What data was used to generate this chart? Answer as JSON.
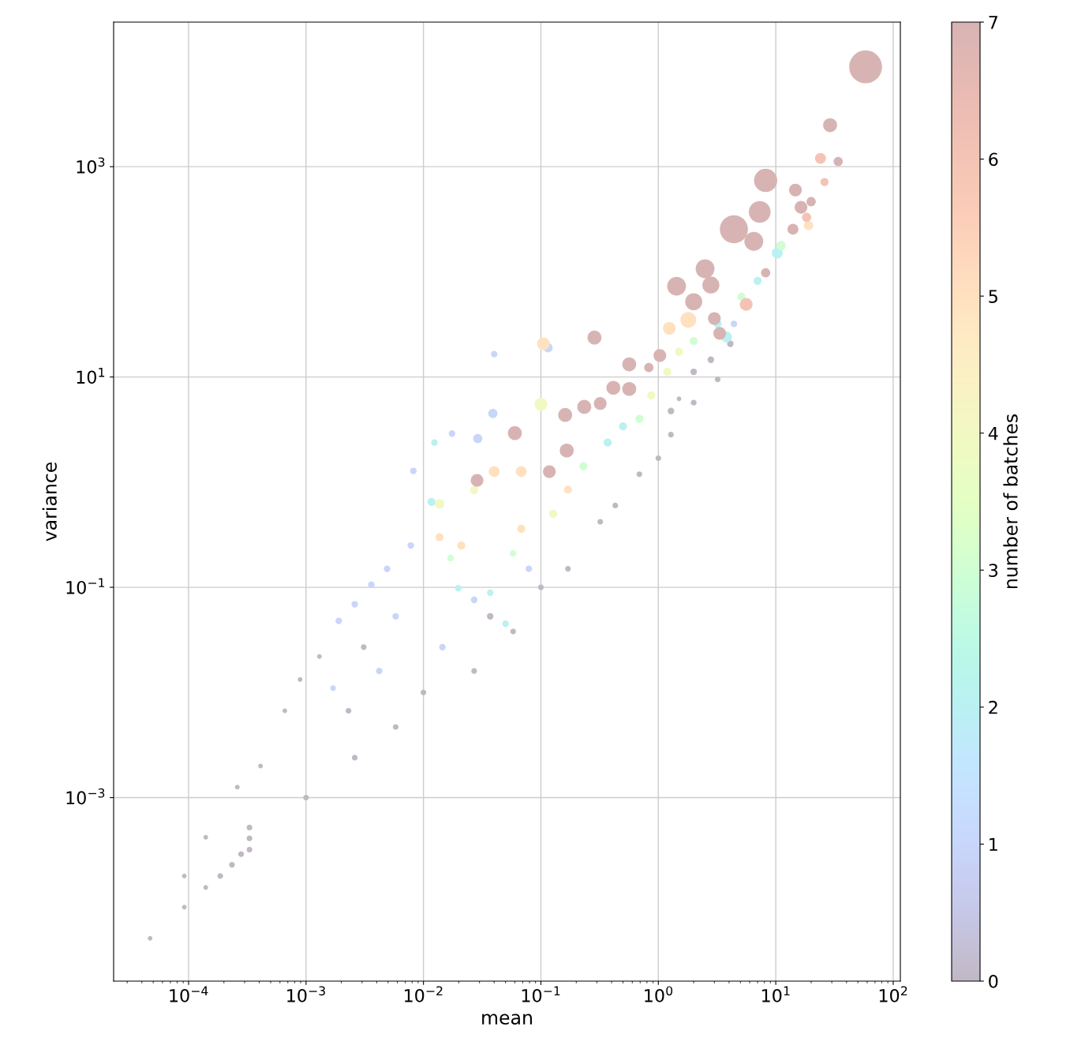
{
  "chart_data": {
    "type": "bubble",
    "xlabel": "mean",
    "ylabel": "variance",
    "clabel": "number of batches",
    "log": "xy",
    "grid": true,
    "xlim": [
      2.3e-05,
      115
    ],
    "ylim": [
      1.8e-05,
      23700
    ],
    "xticks": [
      {
        "value": 0.0001,
        "label": "10$^{−4}$"
      },
      {
        "value": 0.001,
        "label": "10$^{−3}$"
      },
      {
        "value": 0.01,
        "label": "10$^{−2}$"
      },
      {
        "value": 0.1,
        "label": "10$^{−1}$"
      },
      {
        "value": 1,
        "label": "10$^{0}$"
      },
      {
        "value": 10,
        "label": "10$^{1}$"
      },
      {
        "value": 100,
        "label": "10$^{2}$"
      }
    ],
    "yticks": [
      {
        "value": 0.001,
        "label": "10$^{−3}$"
      },
      {
        "value": 0.1,
        "label": "10$^{−1}$"
      },
      {
        "value": 10,
        "label": "10$^{1}$"
      },
      {
        "value": 1000,
        "label": "10$^{3}$"
      }
    ],
    "clim": [
      0,
      7
    ],
    "cticks": [
      0,
      1,
      2,
      3,
      4,
      5,
      6,
      7
    ],
    "x": [
      4.7e-05,
      9.2e-05,
      9.2e-05,
      0.00014,
      0.00014,
      0.000186,
      0.000234,
      0.00028,
      0.00033,
      0.00033,
      0.00033,
      0.001,
      0.01,
      0.1,
      0.32,
      1,
      0.00026,
      0.00041,
      0.00066,
      0.00089,
      0.0013,
      0.0026,
      0.0058,
      0.027,
      0.058,
      0.17,
      0.43,
      0.69,
      1.28,
      2.0,
      3.2,
      0.0031,
      0.0023,
      0.037,
      0.0017,
      0.0019,
      0.0026,
      0.0036,
      0.0049,
      0.0078,
      0.0082,
      0.0117,
      0.0137,
      0.027,
      0.021,
      0.0137,
      0.037,
      0.017,
      0.058,
      0.068,
      0.127,
      0.17,
      0.23,
      0.37,
      0.5,
      0.69,
      0.87,
      1.19,
      1.5,
      2.0,
      3.2,
      5.1,
      0.027,
      0.0058,
      0.0042,
      0.0145,
      0.05,
      0.0198,
      0.079,
      4.1,
      2.8,
      2.0,
      1.5,
      1.28,
      4.4,
      7.0,
      10.3,
      19,
      26,
      16.4,
      20,
      18.3,
      14,
      11.1,
      8.2,
      5.6,
      3.8,
      3.33,
      3.0,
      1.8,
      1.24,
      1.03,
      0.83,
      0.32,
      0.414,
      0.565,
      0.166,
      0.118,
      0.068,
      0.04,
      0.0286,
      0.0124,
      0.0175,
      0.029,
      0.039,
      0.1,
      0.06,
      0.234,
      0.161,
      0.04,
      0.115,
      0.105,
      0.565,
      0.286,
      2.8,
      2.0,
      1.43,
      2.5,
      6.5,
      14.7,
      34,
      24,
      7.3,
      4.4,
      8.2,
      29,
      58.2
    ],
    "values": [
      4.6e-05,
      9.1e-05,
      0.00018,
      0.00014,
      0.00042,
      0.00018,
      0.00023,
      0.00029,
      0.00032,
      0.00041,
      0.00052,
      0.001,
      0.01,
      0.1,
      0.42,
      1.69,
      0.00126,
      0.002,
      0.0067,
      0.0133,
      0.022,
      0.0024,
      0.0047,
      0.016,
      0.038,
      0.15,
      0.6,
      1.19,
      2.83,
      5.7,
      9.5,
      0.027,
      0.0067,
      0.053,
      0.011,
      0.048,
      0.069,
      0.106,
      0.15,
      0.25,
      1.28,
      0.65,
      0.62,
      0.84,
      0.25,
      0.3,
      0.089,
      0.19,
      0.21,
      0.36,
      0.5,
      0.85,
      1.42,
      2.38,
      3.4,
      4.0,
      6.7,
      11.2,
      17.4,
      22,
      32,
      58,
      0.076,
      0.053,
      0.016,
      0.027,
      0.045,
      0.098,
      0.15,
      20.7,
      14.6,
      11.2,
      6.2,
      4.75,
      32,
      82,
      151,
      276,
      714,
      411,
      465,
      330,
      254,
      178,
      98,
      49,
      24,
      26,
      36,
      35,
      29,
      16,
      12.3,
      5.6,
      7.9,
      7.7,
      2.0,
      1.26,
      1.26,
      1.26,
      1.04,
      2.38,
      2.9,
      2.6,
      4.5,
      5.5,
      2.93,
      5.2,
      4.36,
      16.5,
      19,
      20.7,
      13.2,
      23.7,
      75,
      52,
      73,
      107,
      195,
      600,
      1120,
      1200,
      371,
      254,
      740,
      2480,
      8900
    ],
    "cvalues": [
      0,
      0,
      0,
      0,
      0,
      0,
      0,
      0,
      0,
      0,
      0,
      0,
      0,
      0,
      0,
      0,
      0,
      0,
      0,
      0,
      0,
      0,
      0,
      0,
      0,
      0,
      0,
      0,
      0,
      0,
      0,
      0,
      0,
      0,
      1,
      1,
      1,
      1,
      1,
      1,
      1,
      2,
      4,
      4,
      5,
      5,
      2,
      3,
      3,
      5,
      4,
      5,
      3,
      2,
      2,
      3,
      4,
      4,
      4,
      3,
      2,
      3,
      1,
      1,
      1,
      1,
      2,
      2,
      1,
      0,
      0,
      0,
      0,
      0,
      1,
      2,
      2,
      5,
      6,
      7,
      7,
      6,
      7,
      3,
      7,
      6,
      2,
      7,
      7,
      5,
      5,
      7,
      7,
      7,
      7,
      7,
      7,
      7,
      5,
      5,
      7,
      2,
      1,
      1,
      1,
      4,
      7,
      7,
      7,
      1,
      1,
      5,
      7,
      7,
      7,
      7,
      7,
      7,
      7,
      7,
      7,
      6,
      7,
      7,
      7,
      7,
      7
    ],
    "sizes": [
      0.02,
      0.02,
      0.02,
      0.02,
      0.02,
      0.03,
      0.03,
      0.03,
      0.03,
      0.03,
      0.03,
      0.03,
      0.03,
      0.03,
      0.03,
      0.03,
      0.02,
      0.02,
      0.02,
      0.02,
      0.02,
      0.03,
      0.03,
      0.03,
      0.03,
      0.03,
      0.03,
      0.03,
      0.03,
      0.03,
      0.03,
      0.03,
      0.03,
      0.04,
      0.03,
      0.04,
      0.04,
      0.04,
      0.04,
      0.04,
      0.04,
      0.06,
      0.08,
      0.06,
      0.06,
      0.06,
      0.04,
      0.04,
      0.04,
      0.06,
      0.06,
      0.06,
      0.06,
      0.06,
      0.06,
      0.06,
      0.06,
      0.06,
      0.06,
      0.06,
      0.06,
      0.06,
      0.04,
      0.04,
      0.04,
      0.04,
      0.04,
      0.04,
      0.04,
      0.04,
      0.04,
      0.04,
      0.02,
      0.04,
      0.04,
      0.06,
      0.11,
      0.08,
      0.06,
      0.15,
      0.08,
      0.08,
      0.11,
      0.08,
      0.08,
      0.15,
      0.11,
      0.15,
      0.15,
      0.23,
      0.15,
      0.15,
      0.08,
      0.15,
      0.18,
      0.18,
      0.18,
      0.15,
      0.11,
      0.11,
      0.15,
      0.04,
      0.04,
      0.08,
      0.08,
      0.15,
      0.18,
      0.18,
      0.18,
      0.04,
      0.08,
      0.15,
      0.18,
      0.18,
      0.27,
      0.27,
      0.33,
      0.33,
      0.33,
      0.15,
      0.08,
      0.11,
      0.44,
      0.73,
      0.5,
      0.18,
      1
    ]
  }
}
